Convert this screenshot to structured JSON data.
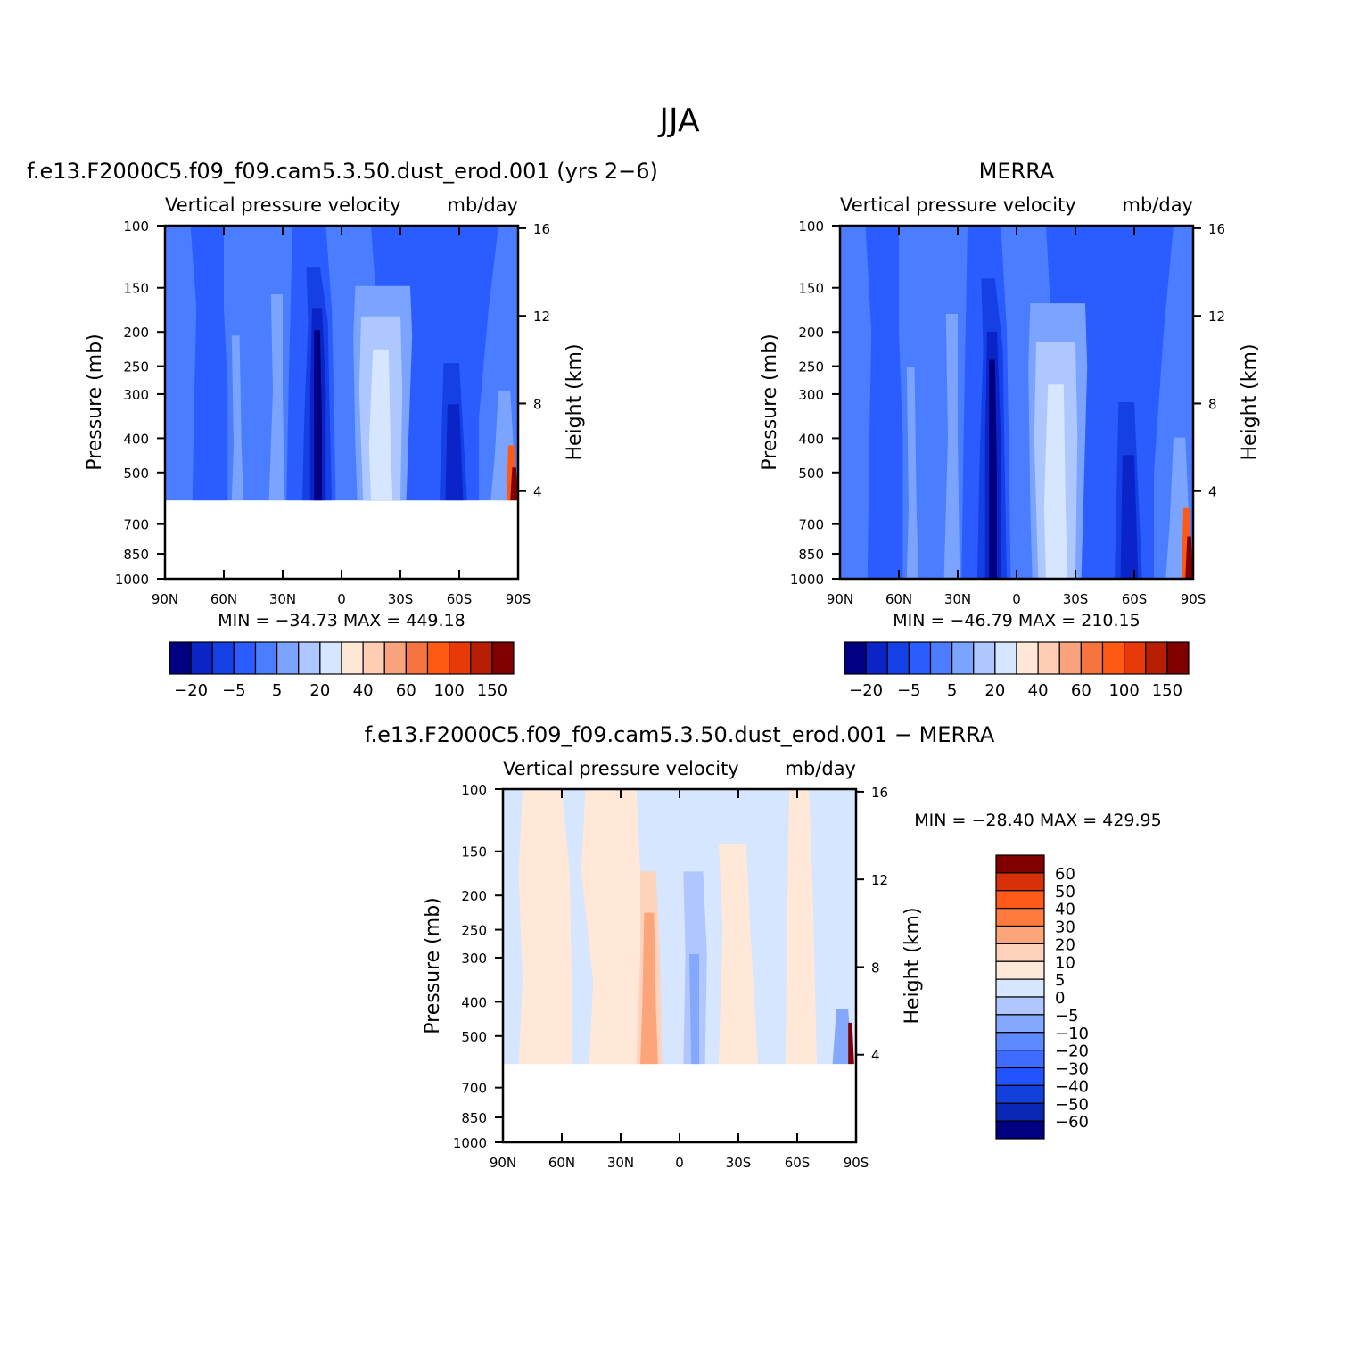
{
  "title": "JJA",
  "colors": {
    "model_scale": [
      "#000080",
      "#0a24c8",
      "#1440e6",
      "#2b5cff",
      "#4a7dff",
      "#7aa4ff",
      "#aec8ff",
      "#d6e6ff",
      "#ffe7d6",
      "#ffcdb4",
      "#f9a27e",
      "#f5743f",
      "#ff5a14",
      "#e83a08",
      "#b81e04",
      "#800000"
    ],
    "diff_scale": [
      "#000080",
      "#0a28b4",
      "#1240dc",
      "#2352ff",
      "#3d6cff",
      "#5e8aff",
      "#85a8ff",
      "#afc6ff",
      "#d6e6ff",
      "#ffe8d8",
      "#ffd2bc",
      "#fca47a",
      "#ff7a3c",
      "#ff5a1a",
      "#d83008",
      "#800000"
    ]
  },
  "chart_data": [
    {
      "type": "heatmap",
      "title": "f.e13.F2000C5.f09_f09.cam5.3.50.dust_erod.001 (yrs 2−6)",
      "variable": "Vertical pressure velocity",
      "units": "mb/day",
      "xlabel": "",
      "ylabel": "Pressure (mb)",
      "ylabel_right": "Height (km)",
      "x_ticks": [
        "90N",
        "60N",
        "30N",
        "0",
        "30S",
        "60S",
        "90S"
      ],
      "y_ticks": [
        100,
        150,
        200,
        250,
        300,
        400,
        500,
        700,
        850,
        1000
      ],
      "y_ticks_right": [
        16,
        12,
        8,
        4
      ],
      "y_scale": "log",
      "ylim": [
        1000,
        100
      ],
      "data_bottom_pressure": 600,
      "stats_label": "MIN = −34.73   MAX = 449.18",
      "min": -34.73,
      "max": 449.18,
      "colorbar_labels": [
        "−20",
        "−5",
        "5",
        "20",
        "40",
        "60",
        "100",
        "150"
      ],
      "colorbar_orientation": "horizontal"
    },
    {
      "type": "heatmap",
      "title": "MERRA",
      "variable": "Vertical pressure velocity",
      "units": "mb/day",
      "xlabel": "",
      "ylabel": "Pressure (mb)",
      "ylabel_right": "Height (km)",
      "x_ticks": [
        "90N",
        "60N",
        "30N",
        "0",
        "30S",
        "60S",
        "90S"
      ],
      "y_ticks": [
        100,
        150,
        200,
        250,
        300,
        400,
        500,
        700,
        850,
        1000
      ],
      "y_ticks_right": [
        16,
        12,
        8,
        4
      ],
      "y_scale": "log",
      "ylim": [
        1000,
        100
      ],
      "data_bottom_pressure": 1000,
      "stats_label": "MIN = −46.79   MAX = 210.15",
      "min": -46.79,
      "max": 210.15,
      "colorbar_labels": [
        "−20",
        "−5",
        "5",
        "20",
        "40",
        "60",
        "100",
        "150"
      ],
      "colorbar_orientation": "horizontal"
    },
    {
      "type": "heatmap",
      "title": "f.e13.F2000C5.f09_f09.cam5.3.50.dust_erod.001 − MERRA",
      "variable": "Vertical pressure velocity",
      "units": "mb/day",
      "xlabel": "",
      "ylabel": "Pressure (mb)",
      "ylabel_right": "Height (km)",
      "x_ticks": [
        "90N",
        "60N",
        "30N",
        "0",
        "30S",
        "60S",
        "90S"
      ],
      "y_ticks": [
        100,
        150,
        200,
        250,
        300,
        400,
        500,
        700,
        850,
        1000
      ],
      "y_ticks_right": [
        16,
        12,
        8,
        4
      ],
      "y_scale": "log",
      "ylim": [
        1000,
        100
      ],
      "data_bottom_pressure": 600,
      "stats_label": "MIN = −28.40   MAX = 429.95",
      "min": -28.4,
      "max": 429.95,
      "colorbar_labels": [
        "60",
        "50",
        "40",
        "30",
        "20",
        "10",
        "5",
        "0",
        "−5",
        "−10",
        "−20",
        "−30",
        "−40",
        "−50",
        "−60"
      ],
      "colorbar_orientation": "vertical"
    }
  ]
}
